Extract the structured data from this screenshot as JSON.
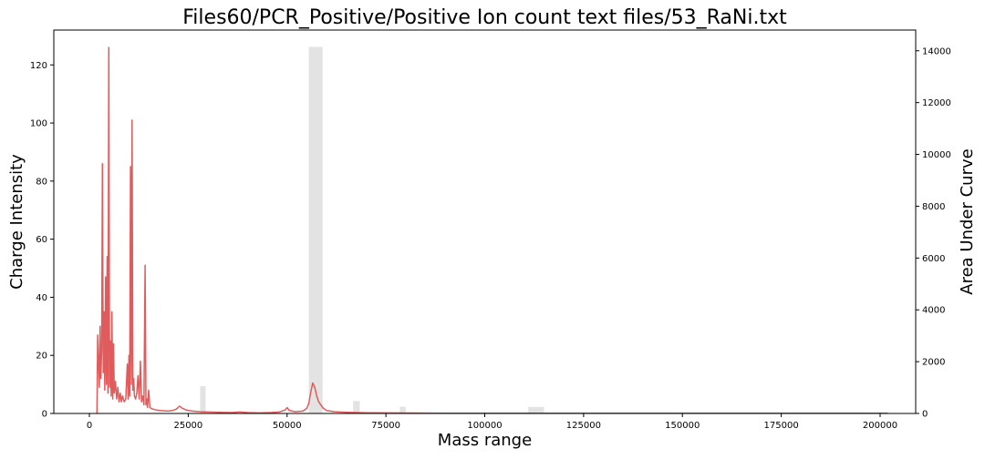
{
  "chart_data": {
    "type": "line+bar",
    "title": "Files60/PCR_Positive/Positive Ion count text files/53_RaNi.txt",
    "xlabel": "Mass range",
    "ylabel_left": "Charge Intensity",
    "ylabel_right": "Area Under Curve",
    "xlim": [
      -9000,
      209000
    ],
    "ylim_left": [
      0,
      132
    ],
    "ylim_right": [
      0,
      14800
    ],
    "x_ticks": [
      0,
      25000,
      50000,
      75000,
      100000,
      125000,
      150000,
      175000,
      200000
    ],
    "y_left_ticks": [
      0,
      20,
      40,
      60,
      80,
      100,
      120
    ],
    "y_right_ticks": [
      0,
      2000,
      4000,
      6000,
      8000,
      10000,
      12000,
      14000
    ],
    "grid": false,
    "colors": {
      "line": "#e05c5c",
      "bar": "#e3e3e3"
    },
    "bars": {
      "name": "Area Under Curve",
      "x_start": [
        28000,
        55500,
        66700,
        78500,
        111000
      ],
      "x_end": [
        29400,
        59000,
        68400,
        80000,
        115000
      ],
      "values": [
        1050,
        14150,
        480,
        260,
        250
      ]
    },
    "line": {
      "name": "Charge Intensity",
      "x": [
        1900,
        2100,
        2300,
        2500,
        2700,
        2900,
        3100,
        3300,
        3500,
        3700,
        3900,
        4100,
        4300,
        4500,
        4700,
        4900,
        5100,
        5300,
        5500,
        5700,
        5900,
        6100,
        6300,
        6600,
        6900,
        7200,
        7500,
        7800,
        8100,
        8400,
        8800,
        9200,
        9600,
        9800,
        10000,
        10200,
        10400,
        10600,
        10800,
        11000,
        11200,
        11400,
        11700,
        12000,
        12300,
        12600,
        12900,
        13200,
        13500,
        13800,
        14100,
        14300,
        14500,
        14700,
        15000,
        15300,
        16000,
        17000,
        18000,
        19000,
        20000,
        21000,
        22000,
        22800,
        23500,
        24500,
        26000,
        28000,
        30000,
        33000,
        36000,
        38000,
        40000,
        43000,
        46000,
        48000,
        49500,
        50000,
        50500,
        52000,
        54000,
        55000,
        55500,
        56000,
        56500,
        57000,
        57500,
        58000,
        59000,
        60000,
        62000,
        65000,
        70000,
        80000,
        90000,
        100000,
        120000,
        150000,
        180000,
        202000
      ],
      "values": [
        0,
        27,
        18,
        9,
        30,
        12,
        22,
        86,
        14,
        35,
        8,
        47,
        10,
        54,
        7,
        126,
        9,
        25,
        6,
        35,
        5,
        24,
        7,
        11,
        5,
        9,
        4,
        7,
        4,
        6,
        4,
        5,
        17,
        5,
        20,
        6,
        85,
        10,
        101,
        8,
        12,
        6,
        5,
        7,
        13,
        5,
        18,
        4,
        6,
        3,
        51,
        3,
        5,
        2,
        8,
        2,
        1.5,
        1.2,
        1,
        0.9,
        0.8,
        1,
        1.5,
        2.5,
        1.8,
        1.2,
        0.8,
        0.6,
        0.5,
        0.4,
        0.3,
        0.5,
        0.3,
        0.2,
        0.3,
        0.5,
        1.2,
        2,
        1.1,
        0.6,
        0.8,
        1.8,
        3.5,
        7.5,
        10.5,
        9,
        6,
        4,
        2,
        1,
        0.6,
        0.4,
        0.25,
        0.15,
        0.1,
        0.1,
        0.05,
        0.05,
        0.05,
        0.05
      ]
    }
  }
}
